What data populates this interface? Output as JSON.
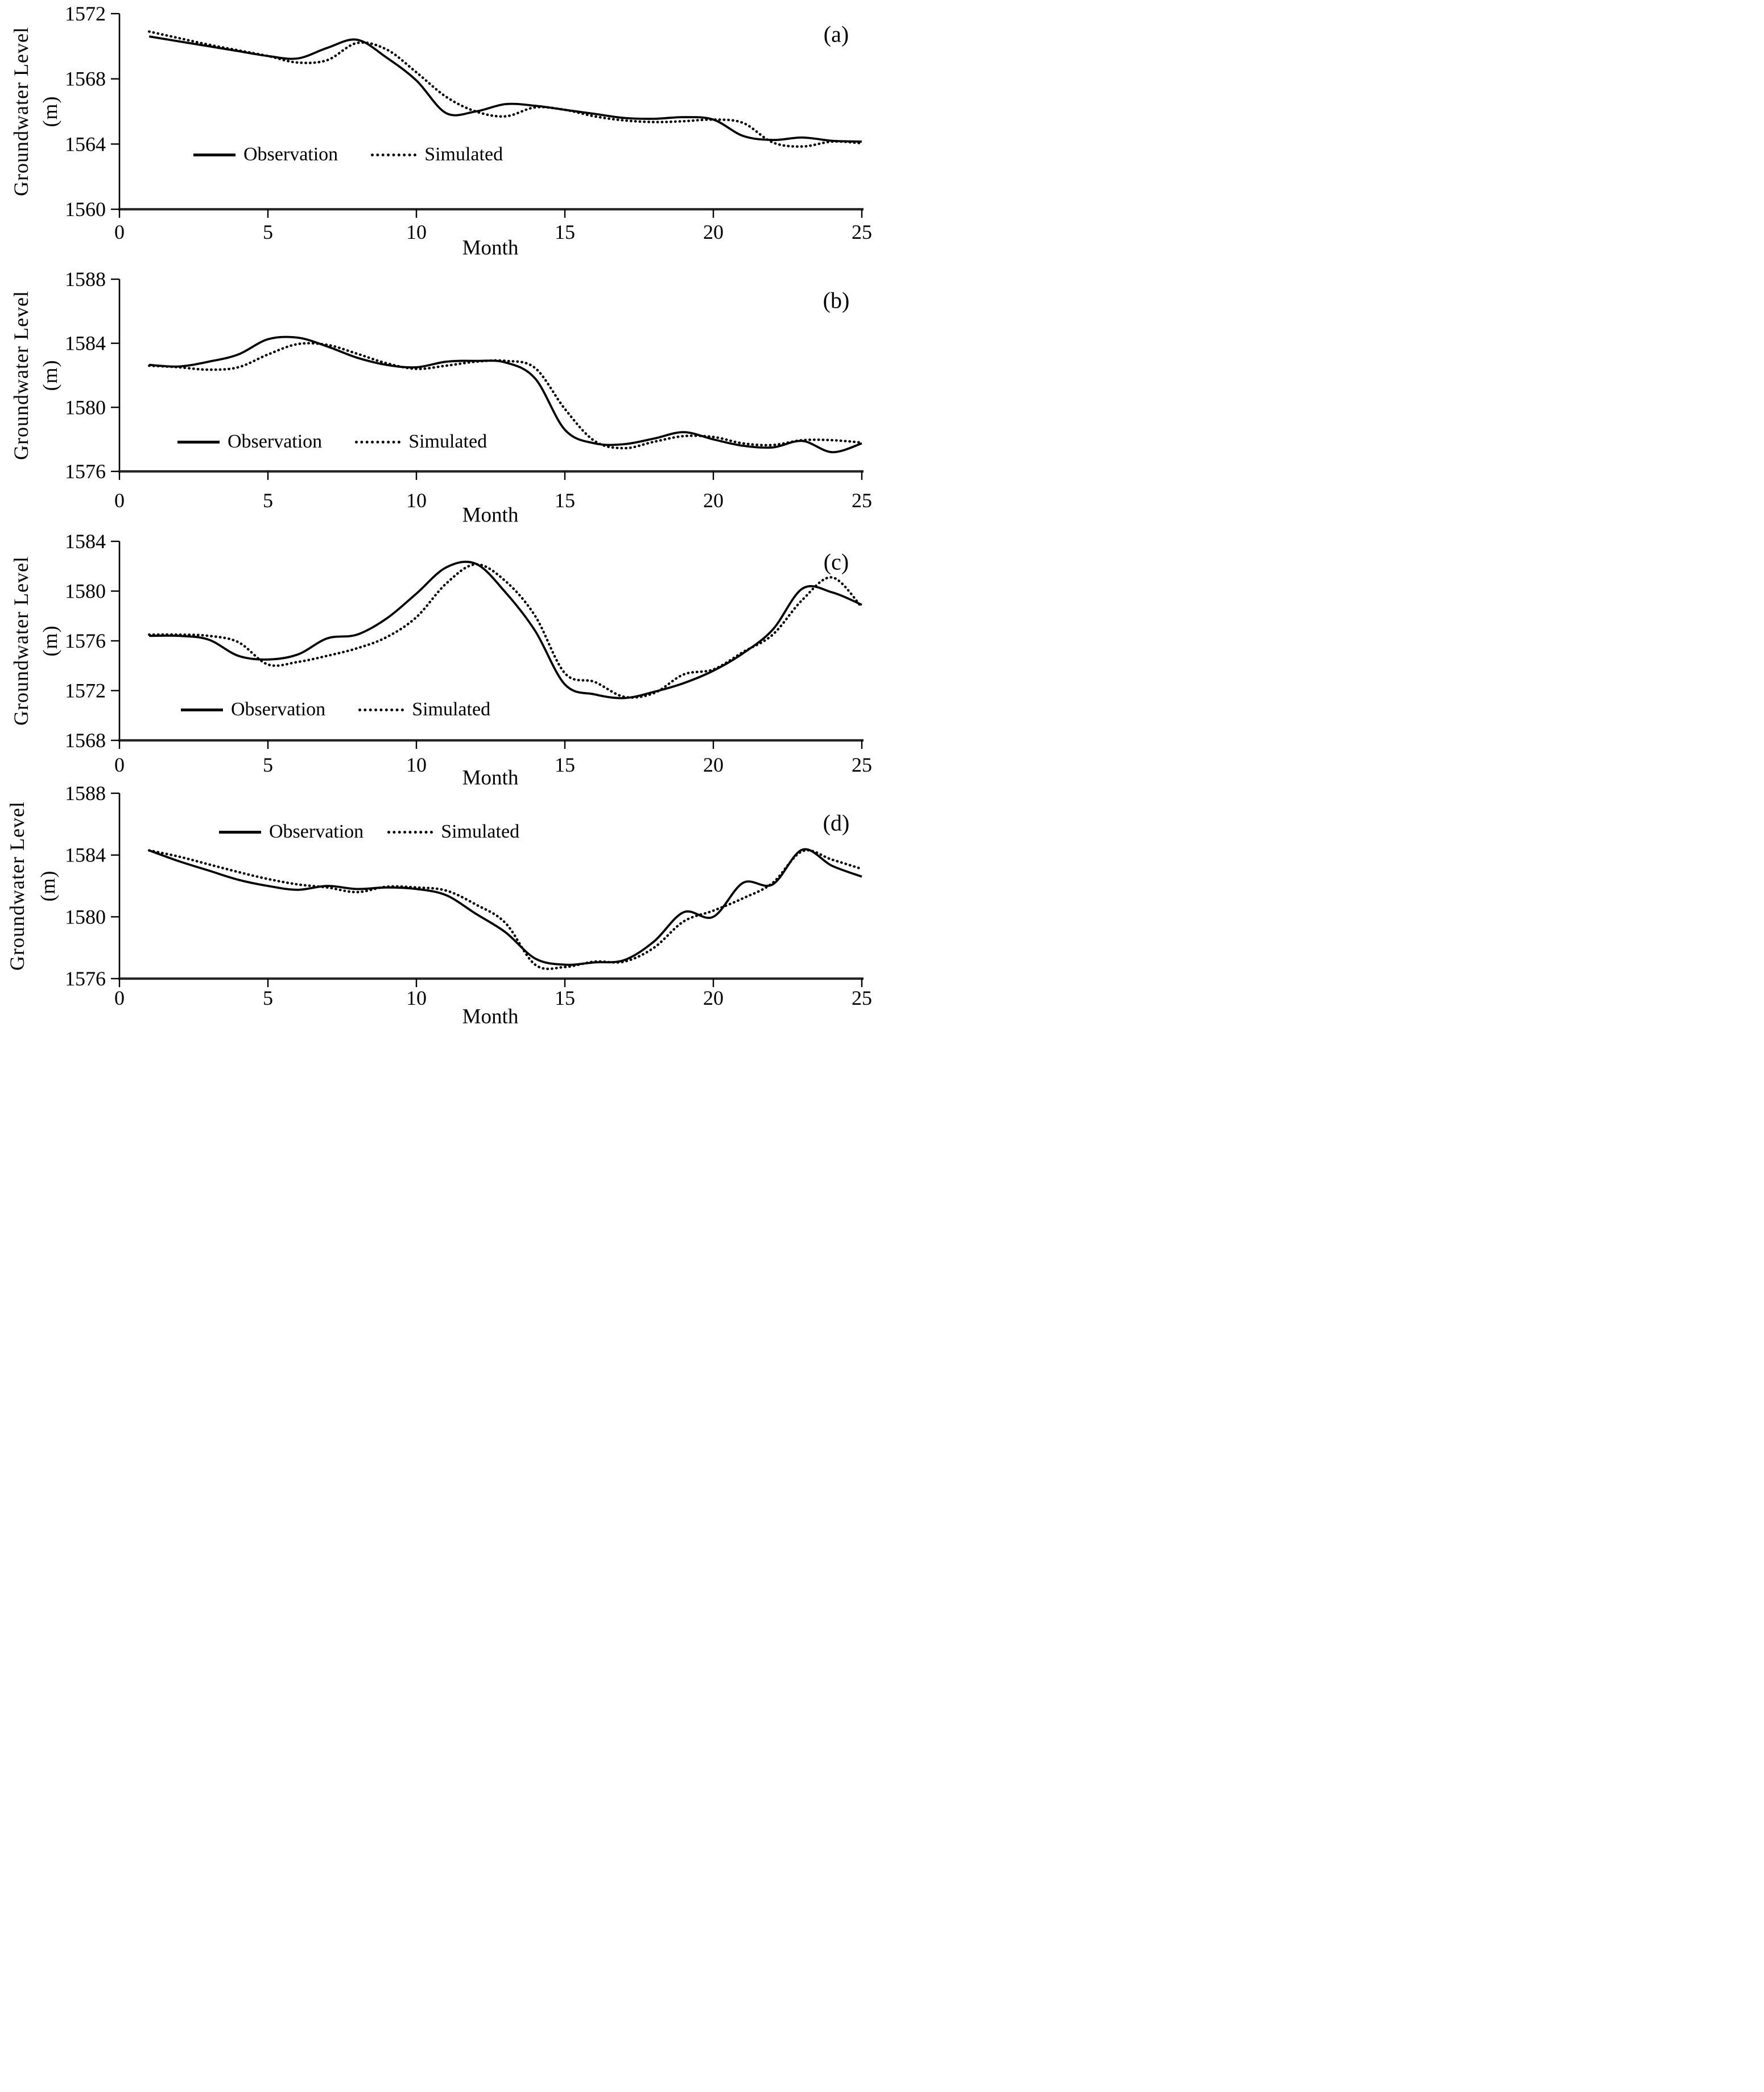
{
  "figure": {
    "x_axis_label": "Month",
    "y_axis_label": "Groundwater Level",
    "y_axis_unit": "(m)",
    "background_color": "#ffffff",
    "line_color": "#000000",
    "legend": {
      "observation": "Observation",
      "simulated": "Simulated"
    }
  },
  "chart_data": [
    {
      "type": "line",
      "panel_label": "(a)",
      "xlabel": "Month",
      "ylabel": "Groundwater Level (m)",
      "legend_position": "inside-left-middle",
      "grid": false,
      "xlim": [
        0,
        25
      ],
      "xticks": [
        0,
        5,
        10,
        15,
        20,
        25
      ],
      "ylim": [
        1560,
        1572
      ],
      "yticks": [
        1560,
        1564,
        1568,
        1572
      ],
      "months": [
        1,
        2,
        3,
        4,
        5,
        6,
        7,
        8,
        9,
        10,
        11,
        12,
        13,
        14,
        15,
        16,
        17,
        18,
        19,
        20,
        21,
        22,
        23,
        24,
        25
      ],
      "series": [
        {
          "name": "Observation",
          "style": "solid",
          "values": [
            1570.6,
            1570.3,
            1570.0,
            1569.7,
            1569.4,
            1569.25,
            1569.9,
            1570.4,
            1569.3,
            1567.9,
            1565.9,
            1566.0,
            1566.45,
            1566.35,
            1566.1,
            1565.85,
            1565.6,
            1565.55,
            1565.65,
            1565.5,
            1564.5,
            1564.25,
            1564.4,
            1564.2,
            1564.15
          ]
        },
        {
          "name": "Simulated",
          "style": "dotted",
          "values": [
            1570.9,
            1570.5,
            1570.1,
            1569.75,
            1569.4,
            1569.0,
            1569.15,
            1570.2,
            1569.8,
            1568.4,
            1566.9,
            1566.0,
            1565.7,
            1566.25,
            1566.1,
            1565.7,
            1565.45,
            1565.35,
            1565.4,
            1565.5,
            1565.3,
            1564.1,
            1563.85,
            1564.15,
            1564.05
          ]
        }
      ]
    },
    {
      "type": "line",
      "panel_label": "(b)",
      "xlabel": "Month",
      "ylabel": "Groundwater Level (m)",
      "legend_position": "inside-left-middle",
      "grid": false,
      "xlim": [
        0,
        25
      ],
      "xticks": [
        0,
        5,
        10,
        15,
        20,
        25
      ],
      "ylim": [
        1576,
        1588
      ],
      "yticks": [
        1576,
        1580,
        1584,
        1588
      ],
      "months": [
        1,
        2,
        3,
        4,
        5,
        6,
        7,
        8,
        9,
        10,
        11,
        12,
        13,
        14,
        15,
        16,
        17,
        18,
        19,
        20,
        21,
        22,
        23,
        24,
        25
      ],
      "series": [
        {
          "name": "Observation",
          "style": "solid",
          "values": [
            1582.65,
            1582.55,
            1582.85,
            1583.3,
            1584.25,
            1584.35,
            1583.8,
            1583.1,
            1582.65,
            1582.5,
            1582.85,
            1582.9,
            1582.8,
            1581.8,
            1578.6,
            1577.75,
            1577.7,
            1578.05,
            1578.45,
            1578.0,
            1577.6,
            1577.5,
            1577.9,
            1577.2,
            1577.75
          ]
        },
        {
          "name": "Simulated",
          "style": "dotted",
          "values": [
            1582.6,
            1582.5,
            1582.35,
            1582.5,
            1583.3,
            1583.95,
            1583.9,
            1583.35,
            1582.75,
            1582.4,
            1582.6,
            1582.85,
            1582.9,
            1582.45,
            1579.9,
            1577.9,
            1577.45,
            1577.85,
            1578.2,
            1578.15,
            1577.75,
            1577.65,
            1577.95,
            1577.95,
            1577.8
          ]
        }
      ]
    },
    {
      "type": "line",
      "panel_label": "(c)",
      "xlabel": "Month",
      "ylabel": "Groundwater Level (m)",
      "legend_position": "inside-left-middle",
      "grid": false,
      "xlim": [
        0,
        25
      ],
      "xticks": [
        0,
        5,
        10,
        15,
        20,
        25
      ],
      "ylim": [
        1568,
        1584
      ],
      "yticks": [
        1568,
        1572,
        1576,
        1580,
        1584
      ],
      "months": [
        1,
        2,
        3,
        4,
        5,
        6,
        7,
        8,
        9,
        10,
        11,
        12,
        13,
        14,
        15,
        16,
        17,
        18,
        19,
        20,
        21,
        22,
        23,
        24,
        25
      ],
      "series": [
        {
          "name": "Observation",
          "style": "solid",
          "values": [
            1576.4,
            1576.4,
            1576.1,
            1574.8,
            1574.5,
            1574.9,
            1576.2,
            1576.5,
            1577.8,
            1579.8,
            1581.9,
            1582.2,
            1579.9,
            1576.8,
            1572.5,
            1571.7,
            1571.4,
            1571.9,
            1572.6,
            1573.6,
            1575.0,
            1576.9,
            1580.2,
            1579.9,
            1578.9
          ]
        },
        {
          "name": "Simulated",
          "style": "dotted",
          "values": [
            1576.5,
            1576.5,
            1576.4,
            1575.9,
            1574.1,
            1574.3,
            1574.8,
            1575.4,
            1576.3,
            1577.9,
            1580.6,
            1582.15,
            1580.8,
            1578.0,
            1573.4,
            1572.7,
            1571.5,
            1571.8,
            1573.3,
            1573.7,
            1575.1,
            1576.5,
            1579.3,
            1581.1,
            1578.7
          ]
        }
      ]
    },
    {
      "type": "line",
      "panel_label": "(d)",
      "xlabel": "Month",
      "ylabel": "Groundwater Level (m)",
      "legend_position": "inside-top-center",
      "grid": false,
      "xlim": [
        0,
        25
      ],
      "xticks": [
        0,
        5,
        10,
        15,
        20,
        25
      ],
      "ylim": [
        1576,
        1588
      ],
      "yticks": [
        1576,
        1580,
        1584,
        1588
      ],
      "months": [
        1,
        2,
        3,
        4,
        5,
        6,
        7,
        8,
        9,
        10,
        11,
        12,
        13,
        14,
        15,
        16,
        17,
        18,
        19,
        20,
        21,
        22,
        23,
        24,
        25
      ],
      "series": [
        {
          "name": "Observation",
          "style": "solid",
          "values": [
            1584.3,
            1583.6,
            1583.0,
            1582.4,
            1582.0,
            1581.75,
            1582.0,
            1581.8,
            1581.9,
            1581.8,
            1581.4,
            1580.2,
            1579.0,
            1577.3,
            1576.9,
            1577.05,
            1577.2,
            1578.4,
            1580.3,
            1580.0,
            1582.2,
            1582.1,
            1584.35,
            1583.3,
            1582.6
          ]
        },
        {
          "name": "Simulated",
          "style": "dotted",
          "values": [
            1584.3,
            1583.9,
            1583.4,
            1582.9,
            1582.45,
            1582.1,
            1581.9,
            1581.6,
            1581.95,
            1581.9,
            1581.7,
            1580.8,
            1579.6,
            1576.9,
            1576.75,
            1577.1,
            1577.1,
            1578.0,
            1579.7,
            1580.4,
            1581.2,
            1582.2,
            1584.25,
            1583.7,
            1583.1
          ]
        }
      ]
    }
  ]
}
